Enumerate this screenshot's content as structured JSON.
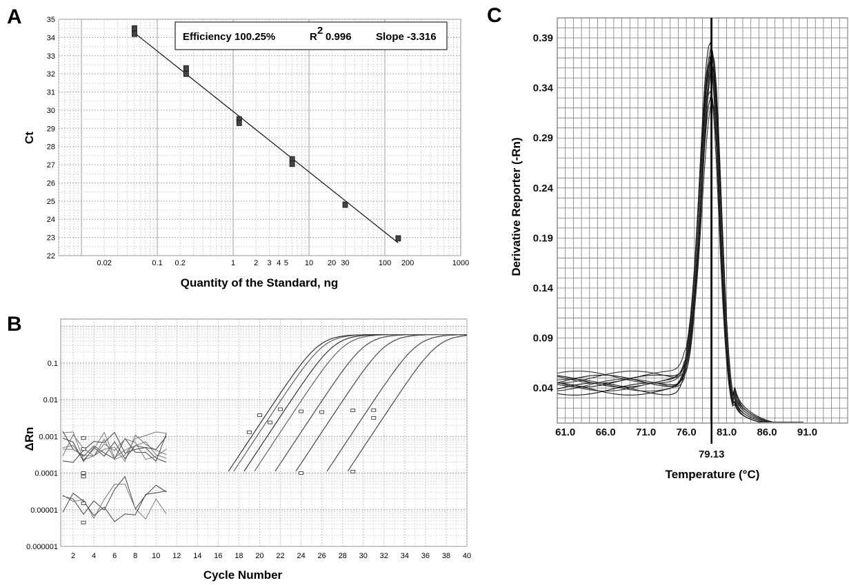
{
  "panels": {
    "a": {
      "letter": "A"
    },
    "b": {
      "letter": "B"
    },
    "c": {
      "letter": "C"
    }
  },
  "chart_data": [
    {
      "id": "A",
      "type": "scatter",
      "xscale": "log",
      "xlim": [
        0.005,
        1000
      ],
      "ylim": [
        22,
        35
      ],
      "xticks": [
        0.02,
        0.1,
        0.2,
        1,
        2,
        3,
        4,
        5,
        10,
        20,
        30,
        100,
        200,
        1000
      ],
      "xtick_labels": [
        "0.02",
        "0.1",
        "0.2",
        "1",
        "2",
        "3",
        "4",
        "5",
        "10",
        "20",
        "30",
        "100",
        "200",
        "1000"
      ],
      "yticks": [
        22,
        23,
        24,
        25,
        26,
        27,
        28,
        29,
        30,
        31,
        32,
        33,
        34,
        35
      ],
      "xlabel": "Quantity of the Standard, ng",
      "ylabel": "Ct",
      "annotation": {
        "efficiency": "Efficiency 100.25%",
        "r2_prefix": "R",
        "r2_sup": "2",
        "r2_value": "0.996",
        "slope": "Slope -3.316"
      },
      "points": [
        {
          "x": 0.05,
          "y": 34.5
        },
        {
          "x": 0.05,
          "y": 34.2
        },
        {
          "x": 0.24,
          "y": 32.3
        },
        {
          "x": 0.24,
          "y": 32.0
        },
        {
          "x": 1.2,
          "y": 29.5
        },
        {
          "x": 1.2,
          "y": 29.3
        },
        {
          "x": 6.0,
          "y": 27.3
        },
        {
          "x": 6.0,
          "y": 27.05
        },
        {
          "x": 30,
          "y": 24.8
        },
        {
          "x": 150,
          "y": 22.95
        }
      ],
      "fit_line": {
        "x": [
          0.05,
          150
        ],
        "y": [
          34.25,
          22.7
        ]
      },
      "grid": true
    },
    {
      "id": "B",
      "type": "line",
      "yscale": "log",
      "xlim": [
        1,
        40
      ],
      "ylim": [
        1e-06,
        1
      ],
      "xticks": [
        2,
        4,
        6,
        8,
        10,
        12,
        14,
        16,
        18,
        20,
        22,
        24,
        26,
        28,
        30,
        32,
        34,
        36,
        38,
        40
      ],
      "yticks": [
        1e-06,
        1e-05,
        0.0001,
        0.001,
        0.01,
        0.1
      ],
      "ytick_labels": [
        "0.000001",
        "0.00001",
        "0.0001",
        "0.001",
        "0.01",
        "0.1"
      ],
      "xlabel": "Cycle Number",
      "ylabel": "ΔRn",
      "grid": true,
      "curve_count": 12,
      "amplification_curves_ct": [
        19.5,
        20,
        21,
        22,
        24,
        24,
        26,
        26,
        29,
        29,
        31,
        31
      ],
      "plateau": 0.6
    },
    {
      "id": "C",
      "type": "line",
      "xlim": [
        60,
        96
      ],
      "ylim": [
        0.005,
        0.41
      ],
      "xticks": [
        61.0,
        66.0,
        71.0,
        76.0,
        81.0,
        86.0,
        91.0
      ],
      "xtick_labels": [
        "61.0",
        "66.0",
        "71.0",
        "76.0",
        "81.0",
        "86.0",
        "91.0"
      ],
      "yticks": [
        0.04,
        0.09,
        0.14,
        0.19,
        0.24,
        0.29,
        0.34,
        0.39
      ],
      "ytick_labels": [
        "0.04",
        "0.09",
        "0.14",
        "0.19",
        "0.24",
        "0.29",
        "0.34",
        "0.39"
      ],
      "xlabel": "Temperature (°C)",
      "ylabel": "Derivative Reporter (-Rn)",
      "marker_x": 79.13,
      "marker_label": "79.13",
      "peak_value": 0.4,
      "curve_count": 12,
      "grid": true
    }
  ]
}
